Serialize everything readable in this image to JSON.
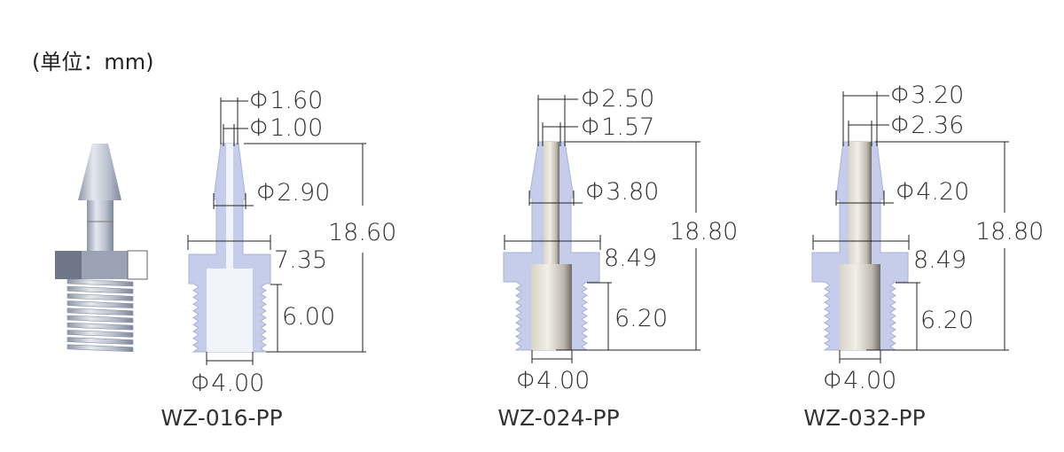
{
  "unit_label": "(单位：mm)",
  "colors": {
    "body": "#c6cdea",
    "body_outline": "#a8b2d6",
    "rod": "#e2ded4",
    "bore": "#f1f3fa"
  },
  "parts": [
    {
      "model": "WZ-016-PP",
      "tip_od": "Φ1.60",
      "tip_id": "Φ1.00",
      "barb_od": "Φ2.90",
      "flange_width": "7.35",
      "total_length": "18.60",
      "thread_length": "6.00",
      "thread_bore": "Φ4.00"
    },
    {
      "model": "WZ-024-PP",
      "tip_od": "Φ2.50",
      "tip_id": "Φ1.57",
      "barb_od": "Φ3.80",
      "flange_width": "8.49",
      "total_length": "18.80",
      "thread_length": "6.20",
      "thread_bore": "Φ4.00"
    },
    {
      "model": "WZ-032-PP",
      "tip_od": "Φ3.20",
      "tip_id": "Φ2.36",
      "barb_od": "Φ4.20",
      "flange_width": "8.49",
      "total_length": "18.80",
      "thread_length": "6.20",
      "thread_bore": "Φ4.00"
    }
  ]
}
